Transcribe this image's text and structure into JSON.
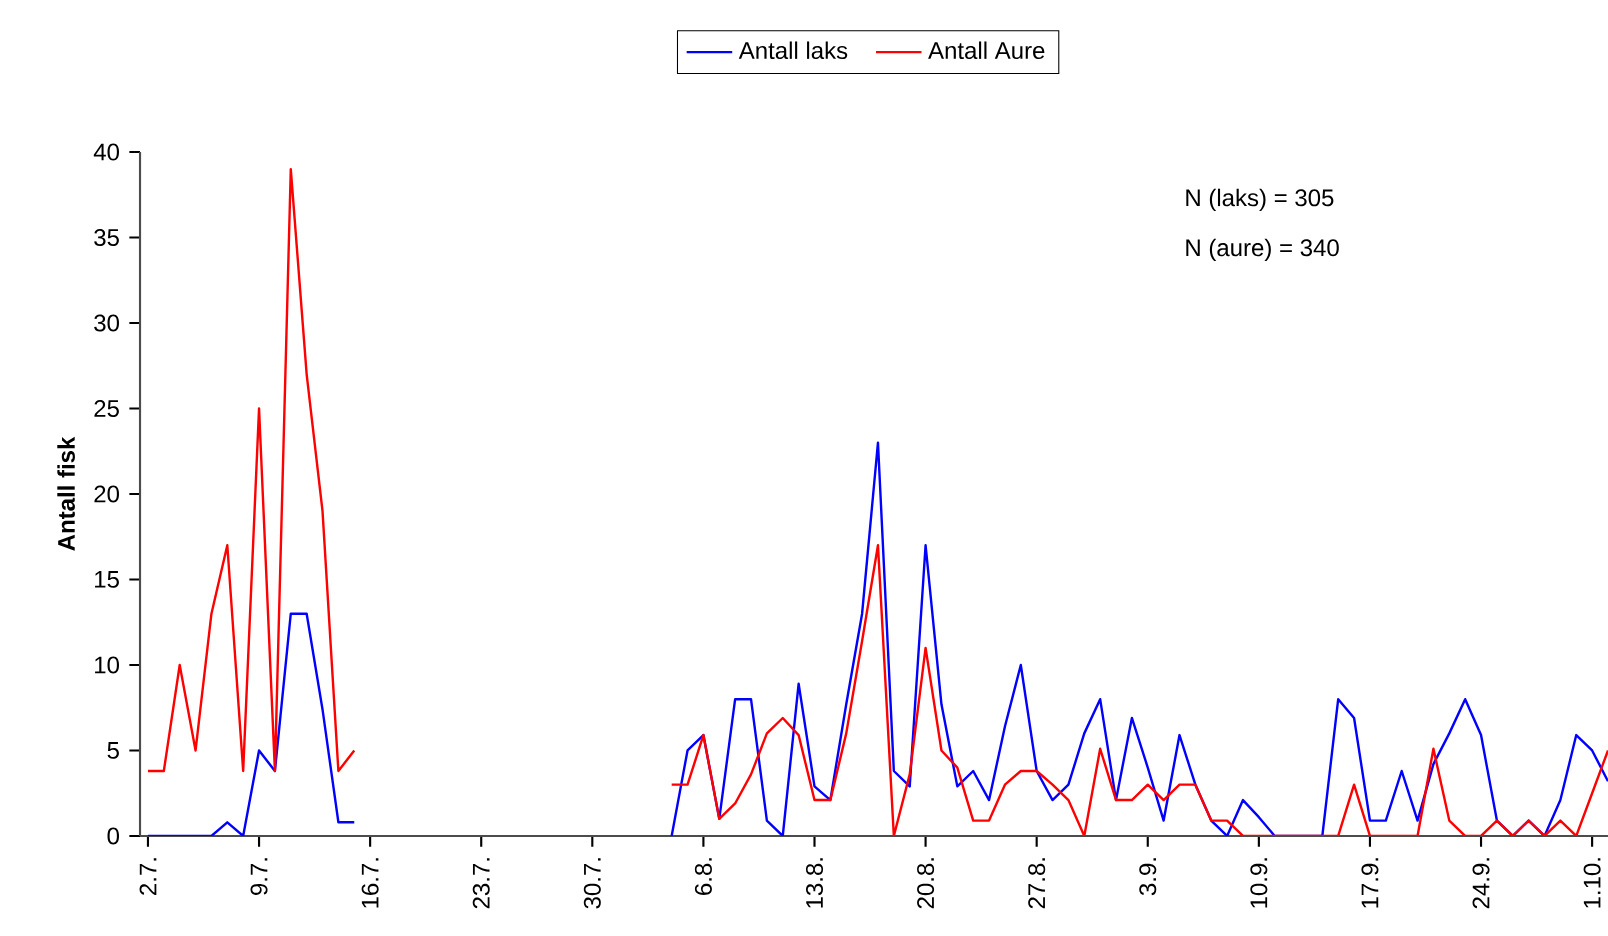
{
  "chart_data": {
    "type": "line",
    "ylabel": "Antall fisk",
    "legend": "top",
    "categories": [
      "2.7.",
      null,
      null,
      null,
      null,
      null,
      null,
      "9.7.",
      null,
      null,
      null,
      null,
      null,
      null,
      "16.7.",
      null,
      null,
      null,
      null,
      null,
      null,
      "23.7.",
      null,
      null,
      null,
      null,
      null,
      null,
      "30.7.",
      null,
      null,
      null,
      null,
      null,
      null,
      "6.8.",
      null,
      null,
      null,
      null,
      null,
      null,
      "13.8.",
      null,
      null,
      null,
      null,
      null,
      null,
      "20.8.",
      null,
      null,
      null,
      null,
      null,
      null,
      "27.8.",
      null,
      null,
      null,
      null,
      null,
      null,
      "3.9.",
      null,
      null,
      null,
      null,
      null,
      null,
      "10.9.",
      null,
      null,
      null,
      null,
      null,
      null,
      "17.9.",
      null,
      null,
      null,
      null,
      null,
      null,
      "24.9.",
      null,
      null,
      null,
      null,
      null,
      null,
      "1.10.",
      null
    ],
    "series": [
      {
        "name": "Antall laks",
        "color": "#0000ff",
        "values": [
          0,
          0,
          0,
          0,
          0,
          0.8,
          0,
          5,
          3.8,
          13,
          13,
          7.4,
          0.8,
          0.8,
          null,
          null,
          null,
          null,
          null,
          null,
          null,
          null,
          null,
          null,
          null,
          null,
          null,
          null,
          null,
          null,
          null,
          null,
          null,
          0,
          5,
          5.9,
          1,
          8,
          8,
          0.9,
          0,
          8.9,
          2.9,
          2.1,
          7.7,
          13,
          23,
          3.8,
          2.9,
          17,
          7.7,
          2.9,
          3.8,
          2.1,
          6.4,
          10,
          3.8,
          2.1,
          3,
          6,
          8,
          2.1,
          6.9,
          4,
          0.9,
          5.9,
          3,
          0.9,
          0,
          2.1,
          1.1,
          0,
          0,
          0,
          0,
          8,
          6.9,
          0.9,
          0.9,
          3.8,
          0.9,
          4.2,
          6,
          8,
          5.9,
          0.9,
          0,
          0.9,
          0,
          2.1,
          5.9,
          5,
          3.2
        ]
      },
      {
        "name": "Antall Aure",
        "color": "#ff0000",
        "values": [
          3.8,
          3.8,
          10,
          5,
          13,
          17,
          3.8,
          25,
          3.8,
          39,
          27,
          19,
          3.8,
          5,
          null,
          null,
          null,
          null,
          null,
          null,
          null,
          null,
          null,
          null,
          null,
          null,
          null,
          null,
          null,
          null,
          null,
          null,
          null,
          3,
          3,
          5.9,
          1,
          1.9,
          3.6,
          6,
          6.9,
          5.9,
          2.1,
          2.1,
          6,
          11.4,
          17,
          0,
          3.6,
          11,
          5,
          4,
          0.9,
          0.9,
          3,
          3.8,
          3.8,
          3,
          2.1,
          0,
          5.1,
          2.1,
          2.1,
          3,
          2.1,
          3,
          3,
          0.9,
          0.9,
          0,
          0,
          0,
          0,
          0,
          0,
          0,
          3,
          0,
          0,
          0,
          0,
          5.1,
          0.9,
          0,
          0,
          0.9,
          0,
          0.9,
          0,
          0.9,
          0,
          2.5,
          5
        ]
      }
    ],
    "ylim": [
      0,
      40
    ],
    "yticks": [
      0,
      5,
      10,
      15,
      20,
      25,
      30,
      35,
      40
    ],
    "annotations": [
      "N (laks) = 305",
      "N (aure) = 340"
    ]
  }
}
